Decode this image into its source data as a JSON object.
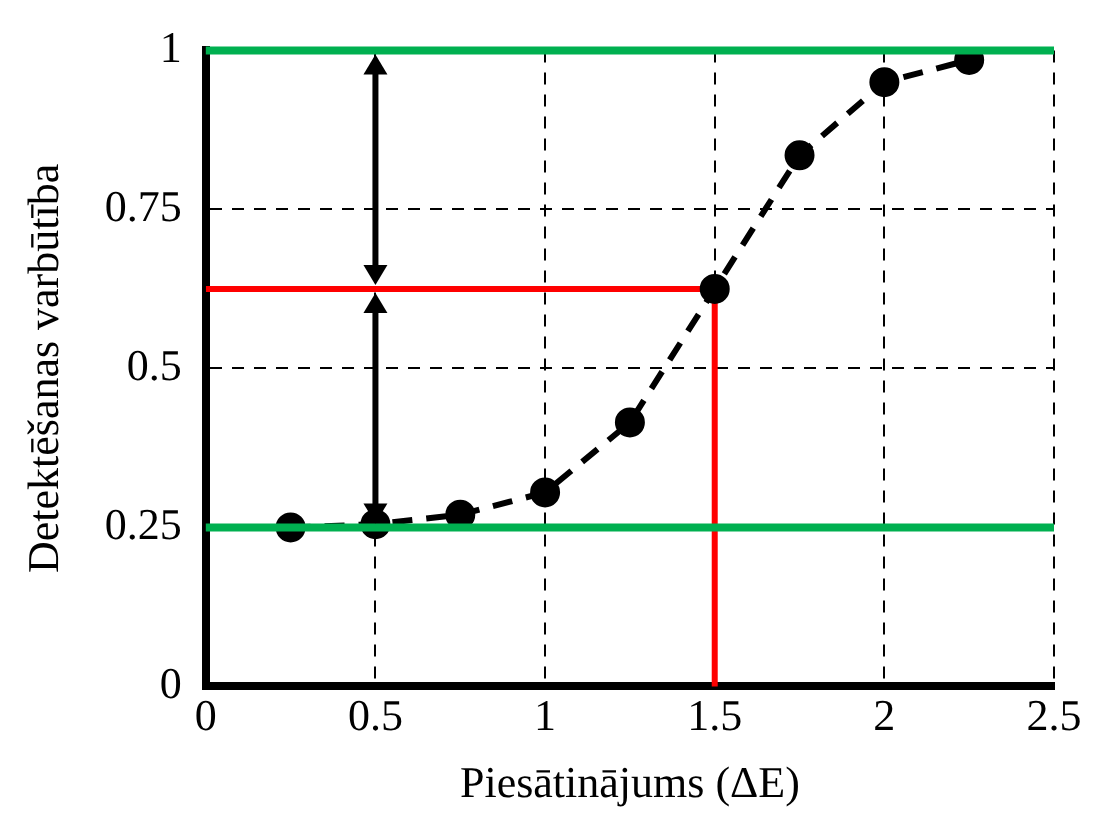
{
  "chart_data": {
    "type": "line",
    "xlabel": "Piesātinājums (ΔE)",
    "ylabel": "Detektēšanas varbūtība",
    "xlim": [
      0,
      2.5
    ],
    "xticks": [
      0,
      0.5,
      1,
      1.5,
      2,
      2.5
    ],
    "ylim": [
      0,
      1
    ],
    "yticks": [
      0,
      0.25,
      0.5,
      0.75,
      1
    ],
    "grid": true,
    "legend": false,
    "marker": "circle",
    "line_style": "dashed",
    "series": [
      {
        "color": "#000000",
        "x": [
          0.25,
          0.5,
          0.75,
          1,
          1.25,
          1.5,
          1.75,
          2,
          2.25
        ],
        "values": [
          0.25,
          0.255,
          0.27,
          0.305,
          0.415,
          0.625,
          0.835,
          0.95,
          0.985
        ]
      },
      {
        "type": "line",
        "color": "#ff0000",
        "marker": "none",
        "line_style": "solid",
        "x": [
          0,
          1.5,
          1.5
        ],
        "values": [
          0.625,
          0.625,
          0
        ]
      }
    ],
    "ref_lines": [
      {
        "axis": "y",
        "value": 1,
        "color": "#00b050"
      },
      {
        "axis": "y",
        "value": 0.25,
        "color": "#00b050"
      }
    ]
  }
}
